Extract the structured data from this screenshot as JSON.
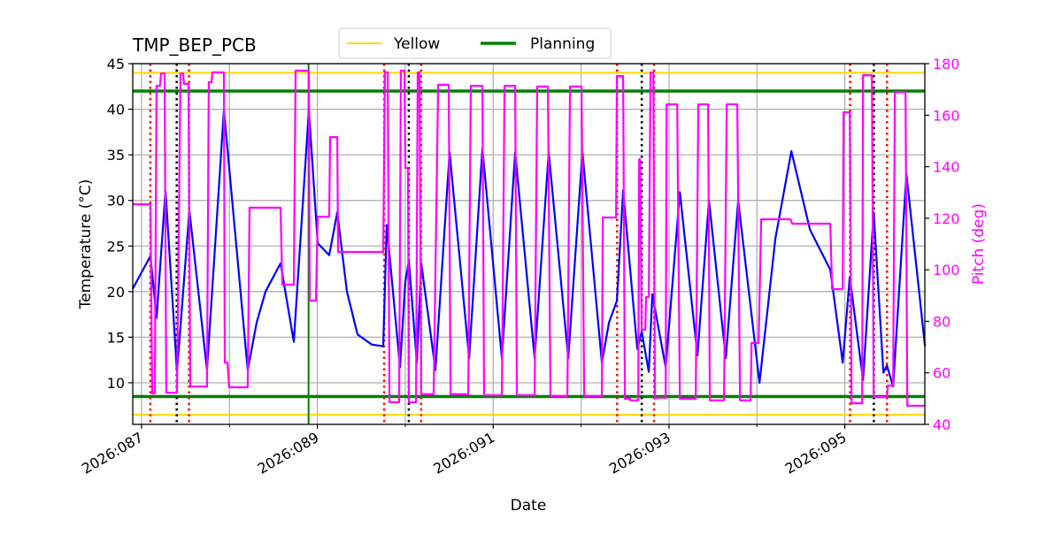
{
  "chart_data": {
    "type": "line",
    "title": "TMP_BEP_PCB",
    "xlabel": "Date",
    "ylabel": "Temperature (°C)",
    "ylabel_right": "Pitch (deg)",
    "xlim": [
      86.9,
      95.91
    ],
    "ylim": [
      5.44,
      45
    ],
    "ylim_right": [
      40,
      180
    ],
    "x_ticks_major": [
      87,
      89,
      91,
      93,
      95
    ],
    "x_tick_labels": [
      "2026:087",
      "2026:089",
      "2026:091",
      "2026:093",
      "2026:095"
    ],
    "x_ticks_minor": [
      88,
      90,
      92,
      94
    ],
    "y_ticks": [
      10,
      15,
      20,
      25,
      30,
      35,
      40,
      45
    ],
    "y_ticks_right": [
      40,
      60,
      80,
      100,
      120,
      140,
      160,
      180
    ],
    "grid": true,
    "legend": {
      "placement": "top-center",
      "entries": [
        {
          "label": "Yellow",
          "color": "#FFD700"
        },
        {
          "label": "Planning",
          "color": "#008000"
        }
      ]
    },
    "limits": {
      "yellow": {
        "values": [
          44,
          6.5
        ],
        "color": "#FFD700"
      },
      "planning": {
        "values": [
          42,
          8.5
        ],
        "color": "#008000"
      }
    },
    "vlines": {
      "red_dotted": [
        87.1,
        87.54,
        89.76,
        90.18,
        92.41,
        92.83,
        95.06,
        95.48
      ],
      "black_dotted": [
        87.4,
        90.04,
        92.69,
        95.33
      ],
      "green_solid": [
        88.9
      ]
    },
    "series": [
      {
        "name": "Temperature",
        "axis": "left",
        "color": "#0000FF",
        "points": [
          [
            86.899,
            20.3
          ],
          [
            87.101,
            23.9
          ],
          [
            87.171,
            17.1
          ],
          [
            87.272,
            31.1
          ],
          [
            87.403,
            11.2
          ],
          [
            87.544,
            28.9
          ],
          [
            87.745,
            11.4
          ],
          [
            87.937,
            39.9
          ],
          [
            88.208,
            11.4
          ],
          [
            88.309,
            16.6
          ],
          [
            88.41,
            20.0
          ],
          [
            88.581,
            23.1
          ],
          [
            88.732,
            14.5
          ],
          [
            88.903,
            39.9
          ],
          [
            89.004,
            25.3
          ],
          [
            89.135,
            24.0
          ],
          [
            89.226,
            28.7
          ],
          [
            89.336,
            20.0
          ],
          [
            89.457,
            15.3
          ],
          [
            89.618,
            14.2
          ],
          [
            89.749,
            14.0
          ],
          [
            89.789,
            27.3
          ],
          [
            89.94,
            11.7
          ],
          [
            90.0,
            21.0
          ],
          [
            90.041,
            23.4
          ],
          [
            90.132,
            12.2
          ],
          [
            90.182,
            23.1
          ],
          [
            90.343,
            11.4
          ],
          [
            90.504,
            35.3
          ],
          [
            90.726,
            12.7
          ],
          [
            90.877,
            35.7
          ],
          [
            91.099,
            12.7
          ],
          [
            91.25,
            35.3
          ],
          [
            91.471,
            12.7
          ],
          [
            91.632,
            35.3
          ],
          [
            91.854,
            12.7
          ],
          [
            92.015,
            35.3
          ],
          [
            92.237,
            12.2
          ],
          [
            92.317,
            16.6
          ],
          [
            92.408,
            19.0
          ],
          [
            92.478,
            31.1
          ],
          [
            92.639,
            13.7
          ],
          [
            92.69,
            15.6
          ],
          [
            92.77,
            11.2
          ],
          [
            92.81,
            19.7
          ],
          [
            92.962,
            11.7
          ],
          [
            93.123,
            30.9
          ],
          [
            93.324,
            13.0
          ],
          [
            93.455,
            30.0
          ],
          [
            93.646,
            12.7
          ],
          [
            93.787,
            30.0
          ],
          [
            94.029,
            10.0
          ],
          [
            94.21,
            25.8
          ],
          [
            94.392,
            35.4
          ],
          [
            94.603,
            26.8
          ],
          [
            94.835,
            22.4
          ],
          [
            94.976,
            12.2
          ],
          [
            95.056,
            21.6
          ],
          [
            95.207,
            10.3
          ],
          [
            95.328,
            28.7
          ],
          [
            95.439,
            11.1
          ],
          [
            95.479,
            11.9
          ],
          [
            95.55,
            9.6
          ],
          [
            95.701,
            32.9
          ],
          [
            95.912,
            14.0
          ]
        ]
      },
      {
        "name": "Pitch",
        "axis": "right",
        "color": "#FF00FF",
        "steps": [
          [
            86.899,
            87.101,
            125.4
          ],
          [
            87.121,
            87.151,
            52.0
          ],
          [
            87.171,
            87.211,
            171.4
          ],
          [
            87.221,
            87.262,
            176.2
          ],
          [
            87.282,
            87.403,
            52.3
          ],
          [
            87.443,
            87.473,
            176.2
          ],
          [
            87.483,
            87.534,
            172.1
          ],
          [
            87.554,
            87.745,
            54.7
          ],
          [
            87.765,
            87.796,
            172.8
          ],
          [
            87.806,
            87.937,
            176.6
          ],
          [
            87.947,
            87.977,
            64.0
          ],
          [
            87.997,
            88.208,
            54.4
          ],
          [
            88.229,
            88.581,
            124.1
          ],
          [
            88.601,
            88.732,
            94.2
          ],
          [
            88.752,
            88.903,
            177.3
          ],
          [
            88.913,
            88.984,
            88.0
          ],
          [
            89.004,
            89.135,
            120.6
          ],
          [
            89.145,
            89.226,
            151.5
          ],
          [
            89.236,
            89.749,
            106.9
          ],
          [
            89.769,
            89.8,
            176.6
          ],
          [
            89.82,
            89.93,
            48.6
          ],
          [
            89.95,
            89.991,
            177.3
          ],
          [
            90.001,
            90.031,
            139.5
          ],
          [
            90.041,
            90.122,
            48.6
          ],
          [
            90.142,
            90.162,
            176.6
          ],
          [
            90.182,
            90.323,
            51.7
          ],
          [
            90.374,
            90.494,
            171.8
          ],
          [
            90.515,
            90.716,
            51.7
          ],
          [
            90.746,
            90.877,
            171.4
          ],
          [
            90.897,
            91.099,
            51.3
          ],
          [
            91.129,
            91.25,
            171.4
          ],
          [
            91.27,
            91.471,
            51.3
          ],
          [
            91.501,
            91.622,
            171.1
          ],
          [
            91.652,
            91.844,
            51.0
          ],
          [
            91.874,
            92.005,
            171.1
          ],
          [
            92.035,
            92.237,
            51.0
          ],
          [
            92.247,
            92.398,
            120.3
          ],
          [
            92.408,
            92.478,
            175.2
          ],
          [
            92.498,
            92.559,
            49.9
          ],
          [
            92.559,
            92.65,
            49.3
          ],
          [
            92.66,
            92.67,
            142.9
          ],
          [
            92.69,
            92.73,
            76.7
          ],
          [
            92.74,
            92.77,
            89.4
          ],
          [
            92.79,
            92.821,
            176.6
          ],
          [
            92.841,
            92.962,
            50.3
          ],
          [
            92.972,
            93.093,
            164.2
          ],
          [
            93.123,
            93.304,
            49.9
          ],
          [
            93.334,
            93.445,
            164.2
          ],
          [
            93.465,
            93.626,
            49.3
          ],
          [
            93.657,
            93.777,
            164.2
          ],
          [
            93.808,
            93.928,
            49.3
          ],
          [
            93.939,
            94.019,
            71.6
          ],
          [
            94.049,
            94.382,
            119.6
          ],
          [
            94.402,
            94.835,
            117.9
          ],
          [
            94.855,
            94.976,
            92.5
          ],
          [
            94.986,
            95.056,
            161.1
          ],
          [
            95.077,
            95.197,
            48.2
          ],
          [
            95.207,
            95.308,
            175.5
          ],
          [
            95.328,
            95.479,
            50.6
          ],
          [
            95.489,
            95.55,
            55.1
          ],
          [
            95.57,
            95.691,
            169.0
          ],
          [
            95.711,
            95.912,
            47.2
          ]
        ]
      }
    ]
  }
}
